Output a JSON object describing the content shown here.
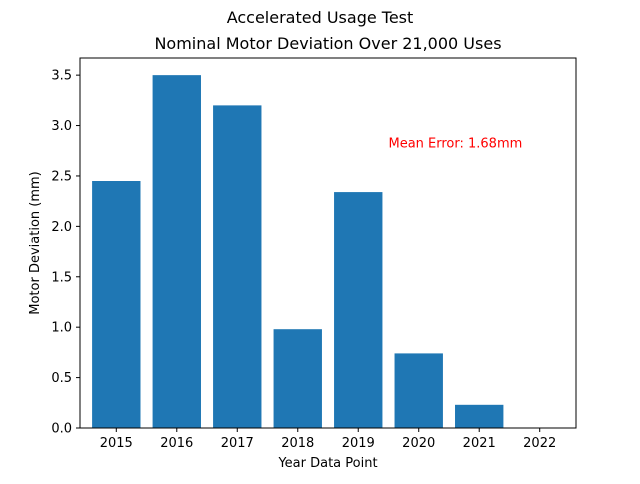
{
  "chart_data": {
    "type": "bar",
    "title": "Accelerated Usage Test",
    "subtitle": "Nominal Motor Deviation Over 21,000 Uses",
    "xlabel": "Year Data Point",
    "ylabel": "Motor Deviation (mm)",
    "categories": [
      "2015",
      "2016",
      "2017",
      "2018",
      "2019",
      "2020",
      "2021",
      "2022"
    ],
    "values": [
      2.45,
      3.5,
      3.2,
      0.98,
      2.34,
      0.74,
      0.23,
      0.0
    ],
    "ylim": [
      0,
      3.67
    ],
    "yticks": [
      0.0,
      0.5,
      1.0,
      1.5,
      2.0,
      2.5,
      3.0,
      3.5
    ],
    "ytick_labels": [
      "0.0",
      "0.5",
      "1.0",
      "1.5",
      "2.0",
      "2.5",
      "3.0",
      "3.5"
    ],
    "grid": false,
    "bar_color": "#1f77b4",
    "annotations": [
      {
        "text": "Mean Error: 1.68mm",
        "x": 2019.5,
        "y": 2.83,
        "color": "#ff0000"
      }
    ]
  }
}
